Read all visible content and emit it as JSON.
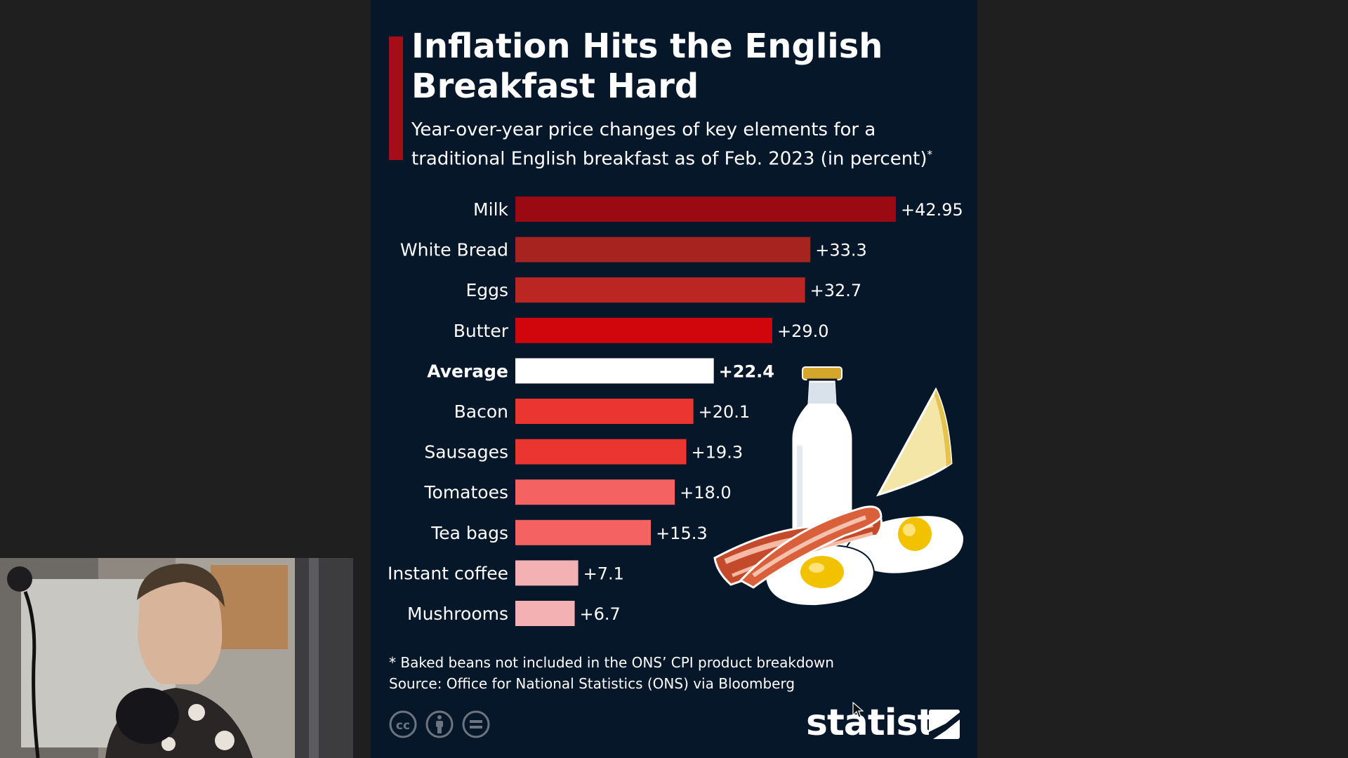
{
  "chart_data": {
    "type": "bar",
    "orientation": "horizontal",
    "title": "Inflation Hits the English Breakfast Hard",
    "subtitle": "Year-over-year price changes of key elements for a traditional English breakfast as of Feb. 2023 (in percent)",
    "subtitle_marker": "*",
    "categories": [
      "Milk",
      "White Bread",
      "Eggs",
      "Butter",
      "Average",
      "Bacon",
      "Sausages",
      "Tomatoes",
      "Tea bags",
      "Instant coffee",
      "Mushrooms"
    ],
    "values": [
      42.95,
      33.3,
      32.7,
      29.0,
      22.4,
      20.1,
      19.3,
      18.0,
      15.3,
      7.1,
      6.7
    ],
    "value_labels": [
      "+42.95",
      "+33.3",
      "+32.7",
      "+29.0",
      "+22.4",
      "+20.1",
      "+19.3",
      "+18.0",
      "+15.3",
      "+7.1",
      "+6.7"
    ],
    "bar_colors": [
      "#9b0a13",
      "#a6231f",
      "#bb2522",
      "#d1060c",
      "#ffffff",
      "#ea3530",
      "#ea3530",
      "#f56262",
      "#f56262",
      "#f4b1b3",
      "#f4b1b3"
    ],
    "highlight_category": "Average",
    "xlim": [
      0,
      45
    ],
    "grid": false,
    "legend": "none"
  },
  "footnote": {
    "note": "* Baked beans not included in the ONS’ CPI product breakdown",
    "source": "Source: Office for National Statistics (ONS) via Bloomberg"
  },
  "brand": {
    "name": "statista"
  },
  "colors": {
    "background": "#07172a",
    "accent": "#a50e17",
    "page": "#1f1f1f"
  },
  "icons": [
    "cc-icon",
    "attribution-icon",
    "no-derivatives-icon",
    "statista-logo-icon",
    "mouse-cursor-icon"
  ]
}
